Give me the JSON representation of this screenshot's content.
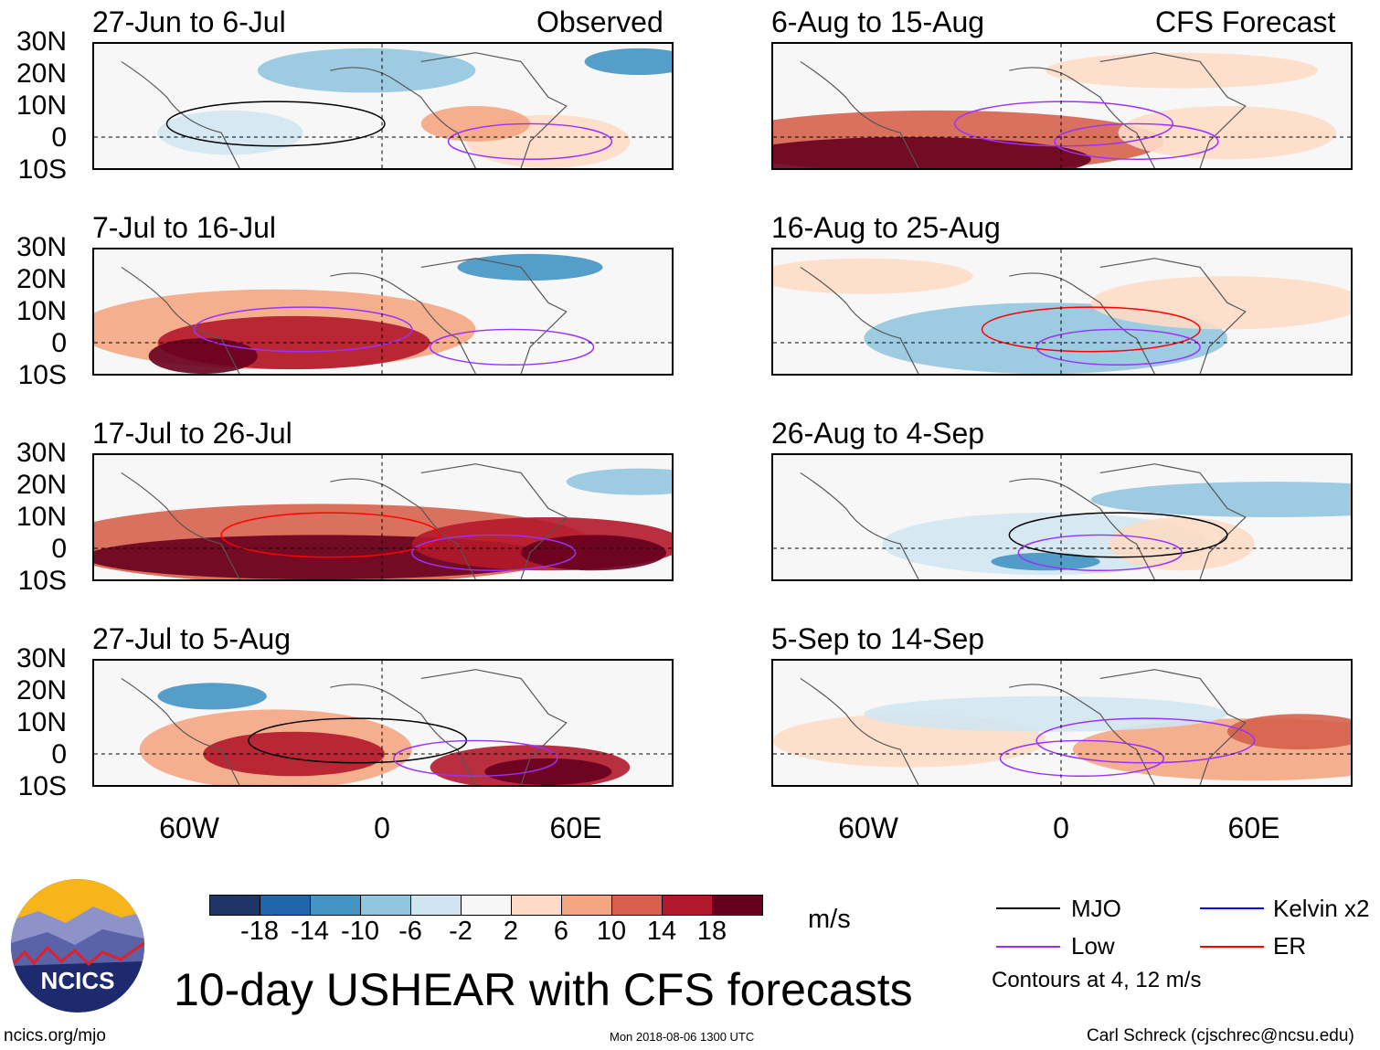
{
  "headers": {
    "left": "Observed",
    "right": "CFS Forecast"
  },
  "panels": [
    {
      "title": "27-Jun to 6-Jul",
      "column": "left",
      "row": 0
    },
    {
      "title": "7-Jul to 16-Jul",
      "column": "left",
      "row": 1
    },
    {
      "title": "17-Jul to 26-Jul",
      "column": "left",
      "row": 2
    },
    {
      "title": "27-Jul to 5-Aug",
      "column": "left",
      "row": 3
    },
    {
      "title": "6-Aug to 15-Aug",
      "column": "right",
      "row": 0
    },
    {
      "title": "16-Aug to 25-Aug",
      "column": "right",
      "row": 1
    },
    {
      "title": "26-Aug to 4-Sep",
      "column": "right",
      "row": 2
    },
    {
      "title": "5-Sep to 14-Sep",
      "column": "right",
      "row": 3
    }
  ],
  "lat_labels": [
    "30N",
    "20N",
    "10N",
    "0",
    "10S"
  ],
  "lon_labels": [
    "60W",
    "0",
    "60E"
  ],
  "colorbar": {
    "colors": [
      "#1f3566",
      "#2166ac",
      "#4393c3",
      "#92c5de",
      "#d1e5f0",
      "#f7f7f7",
      "#fddbc7",
      "#f4a582",
      "#d6604d",
      "#b2182b",
      "#67001f"
    ],
    "labels": [
      "-18",
      "-14",
      "-10",
      "-6",
      "-2",
      "2",
      "6",
      "10",
      "14",
      "18"
    ],
    "units": "m/s"
  },
  "legend": {
    "items": [
      {
        "label": "MJO",
        "color": "#000000"
      },
      {
        "label": "Low",
        "color": "#9b30ff"
      },
      {
        "label": "Kelvin x2",
        "color": "#0000ff"
      },
      {
        "label": "ER",
        "color": "#ff0000"
      }
    ],
    "note": "Contours at 4, 12 m/s"
  },
  "title": "10-day USHEAR with CFS forecasts",
  "logo_text": "NCICS",
  "footer": {
    "left": "ncics.org/mjo",
    "center": "Mon 2018-08-06 1300 UTC",
    "right": "Carl Schreck (cjschrec@ncsu.edu)"
  }
}
